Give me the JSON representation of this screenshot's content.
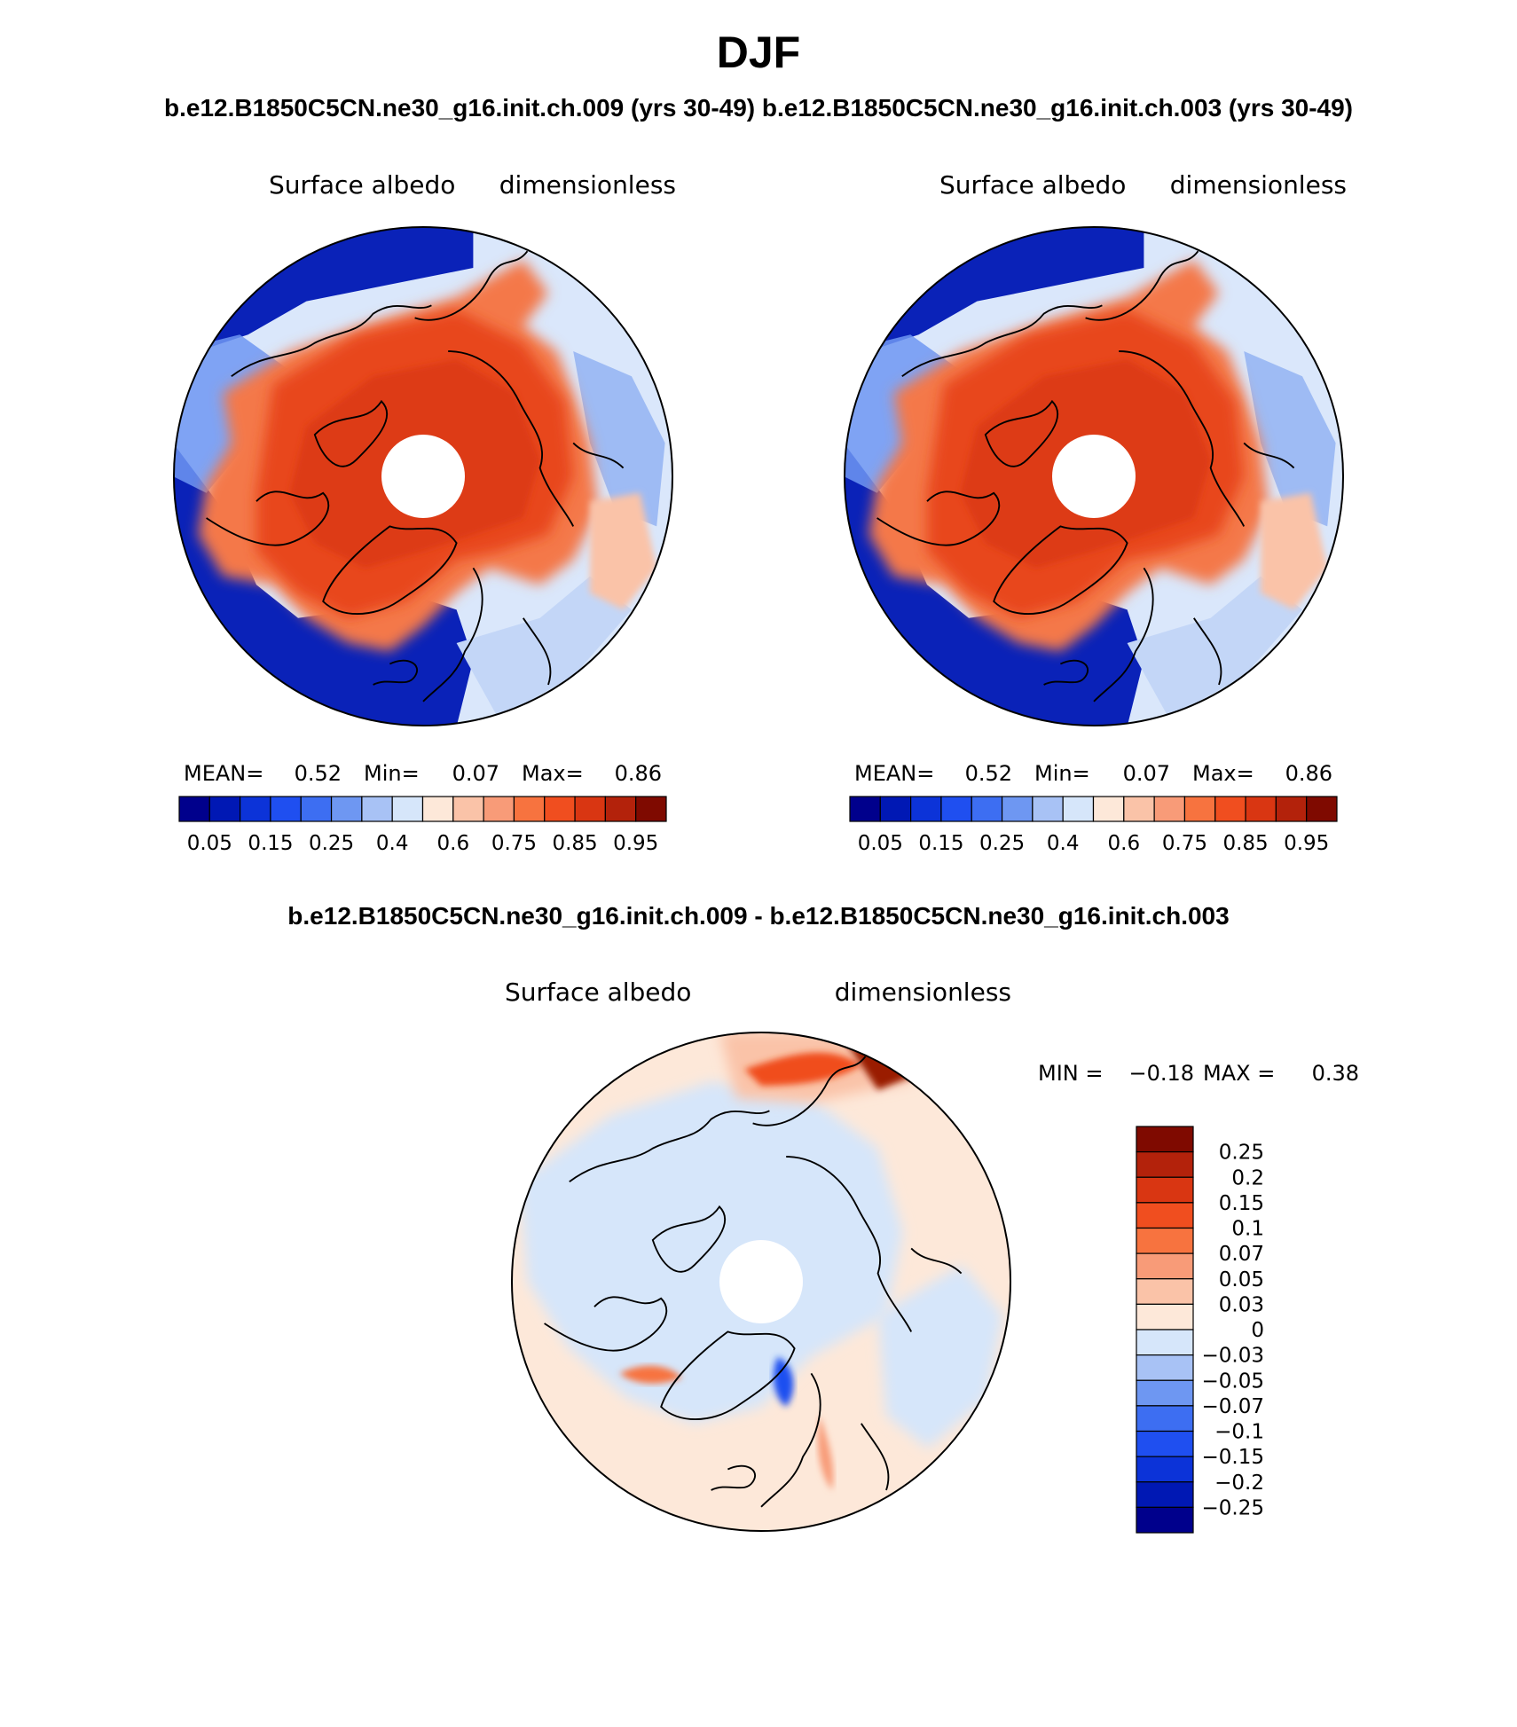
{
  "figure": {
    "title": "DJF",
    "top_caption": "b.e12.B1850C5CN.ne30_g16.init.ch.009 (yrs 30-49) b.e12.B1850C5CN.ne30_g16.init.ch.003 (yrs 30-49)",
    "diff_caption": "b.e12.B1850C5CN.ne30_g16.init.ch.009 - b.e12.B1850C5CN.ne30_g16.init.ch.003"
  },
  "panels": [
    {
      "id": "case-009",
      "variable": "Surface albedo",
      "units": "dimensionless",
      "stats": {
        "mean_label": "MEAN=",
        "mean": "0.52",
        "min_label": "Min=",
        "min": "0.07",
        "max_label": "Max=",
        "max": "0.86"
      }
    },
    {
      "id": "case-003",
      "variable": "Surface albedo",
      "units": "dimensionless",
      "stats": {
        "mean_label": "MEAN=",
        "mean": "0.52",
        "min_label": "Min=",
        "min": "0.07",
        "max_label": "Max=",
        "max": "0.86"
      }
    },
    {
      "id": "difference",
      "variable": "Surface albedo",
      "units": "dimensionless",
      "stats": {
        "min_label": "MIN =",
        "min": "−0.18",
        "max_label": "MAX =",
        "max": "0.38"
      }
    }
  ],
  "colorbars": {
    "albedo": {
      "colors": [
        "#00008c",
        "#0018b4",
        "#0c33d8",
        "#1f4ff0",
        "#3d6ef2",
        "#6e97f2",
        "#a8c2f5",
        "#d6e6fa",
        "#fde8d9",
        "#fac3a8",
        "#f89b78",
        "#f7733f",
        "#f04e1f",
        "#d93612",
        "#b3220b",
        "#7f0a00"
      ],
      "tick_labels": [
        "0.05",
        "0.15",
        "0.25",
        "0.4",
        "0.6",
        "0.75",
        "0.85",
        "0.95"
      ]
    },
    "difference": {
      "colors": [
        "#00008c",
        "#0018b4",
        "#0c33d8",
        "#1f4ff0",
        "#3d6ef2",
        "#6e97f2",
        "#a8c2f5",
        "#d6e6fa",
        "#fde8d9",
        "#fac3a8",
        "#f89b78",
        "#f7733f",
        "#f04e1f",
        "#d93612",
        "#b3220b",
        "#7f0a00"
      ],
      "tick_labels": [
        "0.25",
        "0.2",
        "0.15",
        "0.1",
        "0.07",
        "0.05",
        "0.03",
        "0",
        "−0.03",
        "−0.05",
        "−0.07",
        "−0.1",
        "−0.15",
        "−0.2",
        "−0.25"
      ]
    }
  },
  "map_colors": {
    "ocean_low": "#0a22b8",
    "ocean_mid": "#2f5fe0",
    "snow_high": "#e8461c",
    "snow_mid": "#f4784a",
    "light_blue": "#d6e6fa",
    "light_orange": "#fde8d9",
    "coast": "#000000"
  }
}
